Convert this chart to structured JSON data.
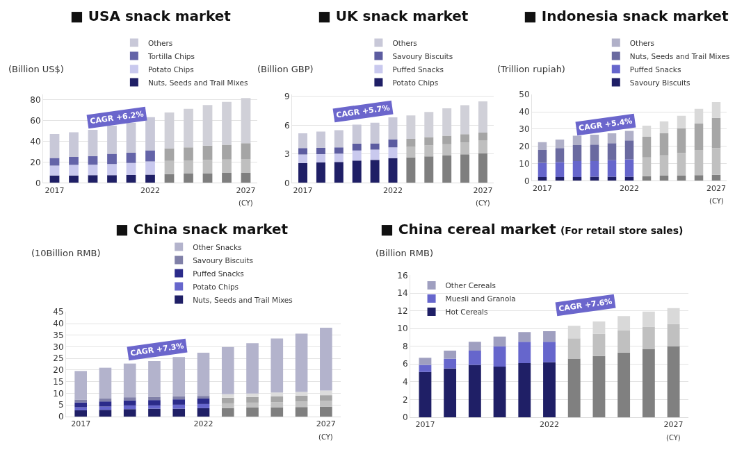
{
  "chart_data": [
    {
      "type": "bar",
      "title": "■ USA snack market",
      "ylabel": "(Billion US$)",
      "xlabel": "(CY)",
      "stacked": true,
      "grid": "y",
      "legend": "top",
      "annotations": [
        "CAGR +6.2%"
      ],
      "categories": [
        "2017",
        null,
        null,
        null,
        null,
        "2022",
        null,
        null,
        null,
        null,
        "2027"
      ],
      "ylim": [
        0,
        85
      ],
      "yticks": [
        0,
        20,
        40,
        60,
        80
      ],
      "series": [
        {
          "name": "Nuts, Seeds and Trail Mixes",
          "colors": [
            "#1f1f66",
            "#1f1f66",
            "#1f1f66",
            "#1f1f66",
            "#1f1f66",
            "#1f1f66",
            "#7f7f7f",
            "#7f7f7f",
            "#7f7f7f",
            "#7f7f7f",
            "#7f7f7f"
          ],
          "values": [
            7.1,
            7.1,
            7.4,
            7.4,
            7.6,
            8.0,
            8.5,
            9.0,
            9.0,
            9.6,
            9.6
          ]
        },
        {
          "name": "Potato Chips",
          "colors": [
            "#c9c9ee",
            "#c9c9ee",
            "#c9c9ee",
            "#c9c9ee",
            "#c9c9ee",
            "#c9c9ee",
            "#bfbfbf",
            "#bfbfbf",
            "#bfbfbf",
            "#bfbfbf",
            "#bfbfbf"
          ],
          "values": [
            9.5,
            10.1,
            10.1,
            10.7,
            11.5,
            12.7,
            12.7,
            12.6,
            13.1,
            12.9,
            13.4
          ]
        },
        {
          "name": "Tortilla Chips",
          "colors": [
            "#6464a8",
            "#6464a8",
            "#6464a8",
            "#6464a8",
            "#6464a8",
            "#6464a8",
            "#a5a5a5",
            "#a5a5a5",
            "#a5a5a5",
            "#a5a5a5",
            "#a5a5a5"
          ],
          "values": [
            7.3,
            7.8,
            8.3,
            9.9,
            9.9,
            10.6,
            11.9,
            12.6,
            13.7,
            14.1,
            15.1
          ]
        },
        {
          "name": "Others",
          "colors": [
            "#c8c8d8",
            "#c8c8d8",
            "#c8c8d8",
            "#c8c8d8",
            "#c8c8d8",
            "#c8c8d8",
            "#d0d0d8",
            "#d0d0d8",
            "#d0d0d8",
            "#d0d0d8",
            "#d0d0d8"
          ],
          "values": [
            23.2,
            23.7,
            25.2,
            27.0,
            28.9,
            31.9,
            34.7,
            37.1,
            39.1,
            41.4,
            43.5
          ]
        }
      ]
    },
    {
      "type": "bar",
      "title": "■ UK snack market",
      "ylabel": "(Billion GBP)",
      "xlabel": "(CY)",
      "stacked": true,
      "grid": "y",
      "legend": "top",
      "annotations": [
        "CAGR +5.7%"
      ],
      "categories": [
        "2017",
        null,
        null,
        null,
        null,
        "2022",
        null,
        null,
        null,
        null,
        "2027"
      ],
      "ylim": [
        0,
        9.2
      ],
      "yticks": [
        0,
        3,
        6,
        9
      ],
      "series": [
        {
          "name": "Potato Chips",
          "colors": [
            "#1f1f66",
            "#1f1f66",
            "#1f1f66",
            "#1f1f66",
            "#1f1f66",
            "#1f1f66",
            "#7f7f7f",
            "#7f7f7f",
            "#7f7f7f",
            "#7f7f7f",
            "#7f7f7f"
          ],
          "values": [
            2.06,
            2.12,
            2.18,
            2.33,
            2.39,
            2.58,
            2.64,
            2.76,
            2.85,
            2.97,
            3.08
          ]
        },
        {
          "name": "Puffed Snacks",
          "colors": [
            "#c9c9ee",
            "#c9c9ee",
            "#c9c9ee",
            "#c9c9ee",
            "#c9c9ee",
            "#c9c9ee",
            "#bfbfbf",
            "#bfbfbf",
            "#bfbfbf",
            "#bfbfbf",
            "#bfbfbf"
          ],
          "values": [
            0.89,
            0.87,
            0.86,
            1.04,
            1.08,
            1.12,
            1.12,
            1.13,
            1.18,
            1.23,
            1.35
          ]
        },
        {
          "name": "Savoury Biscuits",
          "colors": [
            "#5c5ca0",
            "#5c5ca0",
            "#5c5ca0",
            "#5c5ca0",
            "#5c5ca0",
            "#5c5ca0",
            "#a5a5a5",
            "#a5a5a5",
            "#a5a5a5",
            "#a5a5a5",
            "#a5a5a5"
          ],
          "values": [
            0.67,
            0.65,
            0.66,
            0.7,
            0.65,
            0.83,
            0.83,
            0.87,
            0.88,
            0.87,
            0.81
          ]
        },
        {
          "name": "Others",
          "colors": [
            "#c8c8d8",
            "#c8c8d8",
            "#c8c8d8",
            "#c8c8d8",
            "#c8c8d8",
            "#c8c8d8",
            "#d0d0d8",
            "#d0d0d8",
            "#d0d0d8",
            "#d0d0d8",
            "#d0d0d8"
          ],
          "values": [
            1.54,
            1.7,
            1.79,
            2.0,
            2.14,
            2.29,
            2.44,
            2.62,
            2.85,
            3.02,
            3.24
          ]
        }
      ]
    },
    {
      "type": "bar",
      "title": "■ Indonesia snack market",
      "ylabel": "(Trillion rupiah)",
      "xlabel": "(CY)",
      "stacked": true,
      "grid": "y",
      "legend": "top",
      "annotations": [
        "CAGR +5.4%"
      ],
      "categories": [
        "2017",
        null,
        null,
        null,
        null,
        "2022",
        null,
        null,
        null,
        null,
        "2027"
      ],
      "ylim": [
        0,
        50
      ],
      "yticks": [
        0,
        10,
        20,
        30,
        40,
        50
      ],
      "series": [
        {
          "name": "Savoury Biscuits",
          "colors": [
            "#1f1f66",
            "#1f1f66",
            "#1f1f66",
            "#1f1f66",
            "#1f1f66",
            "#1f1f66",
            "#7f7f7f",
            "#7f7f7f",
            "#7f7f7f",
            "#7f7f7f",
            "#7f7f7f"
          ],
          "values": [
            2.2,
            2.2,
            2.2,
            2.4,
            2.4,
            2.4,
            2.7,
            3.0,
            3.0,
            3.3,
            3.5
          ]
        },
        {
          "name": "Puffed Snacks",
          "colors": [
            "#6666cc",
            "#6666cc",
            "#6666cc",
            "#6666cc",
            "#6666cc",
            "#6666cc",
            "#c0c0c0",
            "#c0c0c0",
            "#c0c0c0",
            "#c0c0c0",
            "#c0c0c0"
          ],
          "values": [
            8.2,
            8.6,
            9.2,
            9.0,
            9.5,
            10.0,
            10.9,
            11.8,
            13.2,
            14.4,
            15.5
          ]
        },
        {
          "name": "Nuts, Seeds and Trail Mixes",
          "colors": [
            "#6a6aa0",
            "#6a6aa0",
            "#6a6aa0",
            "#6a6aa0",
            "#6a6aa0",
            "#6a6aa0",
            "#a6a6a6",
            "#a6a6a6",
            "#a6a6a6",
            "#a6a6a6",
            "#a6a6a6"
          ],
          "values": [
            7.5,
            8.2,
            9.3,
            9.6,
            9.9,
            11.0,
            11.9,
            12.7,
            14.2,
            15.5,
            17.5
          ]
        },
        {
          "name": "Others",
          "colors": [
            "#b0b0c8",
            "#b0b0c8",
            "#b0b0c8",
            "#b0b0c8",
            "#b0b0c8",
            "#b0b0c8",
            "#d9d9d9",
            "#d9d9d9",
            "#d9d9d9",
            "#d9d9d9",
            "#d9d9d9"
          ],
          "values": [
            4.5,
            4.9,
            5.4,
            5.7,
            5.7,
            5.5,
            6.5,
            7.0,
            7.3,
            8.5,
            9.1
          ]
        }
      ]
    },
    {
      "type": "bar",
      "title": "■ China snack market",
      "ylabel": "(10Billion RMB)",
      "xlabel": "(CY)",
      "stacked": true,
      "grid": "y",
      "legend": "top",
      "annotations": [
        "CAGR +7.3%"
      ],
      "categories": [
        "2017",
        null,
        null,
        null,
        null,
        "2022",
        null,
        null,
        null,
        null,
        "2027"
      ],
      "ylim": [
        0,
        45
      ],
      "yticks": [
        0,
        5,
        10,
        15,
        20,
        25,
        30,
        35,
        40,
        45
      ],
      "series": [
        {
          "name": "Nuts, Seeds and Trail Mixes",
          "colors": [
            "#1f1f66",
            "#1f1f66",
            "#1f1f66",
            "#1f1f66",
            "#1f1f66",
            "#1f1f66",
            "#7f7f7f",
            "#7f7f7f",
            "#7f7f7f",
            "#7f7f7f",
            "#7f7f7f"
          ],
          "values": [
            2.7,
            2.9,
            3.2,
            3.4,
            3.4,
            3.6,
            3.7,
            4.0,
            4.0,
            4.1,
            4.3
          ]
        },
        {
          "name": "Potato Chips",
          "colors": [
            "#6666cc",
            "#6666cc",
            "#6666cc",
            "#6666cc",
            "#6666cc",
            "#6666cc",
            "#c0c0c0",
            "#c0c0c0",
            "#c0c0c0",
            "#c0c0c0",
            "#c0c0c0"
          ],
          "values": [
            1.3,
            1.4,
            1.6,
            1.4,
            1.7,
            1.8,
            2.0,
            2.0,
            2.2,
            2.4,
            2.5
          ]
        },
        {
          "name": "Puffed Snacks",
          "colors": [
            "#2b2b8a",
            "#2b2b8a",
            "#2b2b8a",
            "#2b2b8a",
            "#2b2b8a",
            "#2b2b8a",
            "#a6a6a6",
            "#a6a6a6",
            "#a6a6a6",
            "#a6a6a6",
            "#a6a6a6"
          ],
          "values": [
            2.1,
            2.2,
            2.2,
            2.3,
            2.3,
            2.4,
            2.4,
            2.4,
            2.5,
            2.5,
            2.4
          ]
        },
        {
          "name": "Savoury Biscuits",
          "colors": [
            "#8080a8",
            "#8080a8",
            "#8080a8",
            "#8080a8",
            "#8080a8",
            "#8080a8",
            "#dcdcdc",
            "#dcdcdc",
            "#dcdcdc",
            "#dcdcdc",
            "#dcdcdc"
          ],
          "values": [
            1.2,
            1.3,
            1.3,
            1.4,
            1.3,
            1.1,
            1.5,
            1.5,
            1.7,
            1.6,
            2.0
          ]
        },
        {
          "name": "Other Snacks",
          "colors": [
            "#b3b3cc",
            "#b3b3cc",
            "#b3b3cc",
            "#b3b3cc",
            "#b3b3cc",
            "#b3b3cc",
            "#b3b3cc",
            "#b3b3cc",
            "#b3b3cc",
            "#b3b3cc",
            "#b3b3cc"
          ],
          "values": [
            12.3,
            13.2,
            14.5,
            15.4,
            16.9,
            18.6,
            20.3,
            21.7,
            23.2,
            25.1,
            27.0
          ]
        }
      ]
    },
    {
      "type": "bar",
      "title": "■ China cereal market",
      "subtitle": "(For retail store sales)",
      "ylabel": "(Billion RMB)",
      "xlabel": "(CY)",
      "stacked": true,
      "grid": "y",
      "legend": "top left",
      "annotations": [
        "CAGR +7.6%"
      ],
      "categories": [
        "2017",
        null,
        null,
        null,
        null,
        "2022",
        null,
        null,
        null,
        null,
        "2027"
      ],
      "ylim": [
        0,
        16
      ],
      "yticks": [
        0,
        2,
        4,
        6,
        8,
        10,
        12,
        14,
        16
      ],
      "series": [
        {
          "name": "Hot Cereals",
          "colors": [
            "#1f1f66",
            "#1f1f66",
            "#1f1f66",
            "#1f1f66",
            "#1f1f66",
            "#1f1f66",
            "#808080",
            "#808080",
            "#808080",
            "#808080",
            "#808080"
          ],
          "values": [
            5.1,
            5.5,
            5.9,
            5.7,
            6.1,
            6.2,
            6.6,
            6.9,
            7.3,
            7.7,
            8.0
          ]
        },
        {
          "name": "Muesli and Granola",
          "colors": [
            "#6666cc",
            "#6666cc",
            "#6666cc",
            "#6666cc",
            "#6666cc",
            "#6666cc",
            "#c0c0c0",
            "#c0c0c0",
            "#c0c0c0",
            "#c0c0c0",
            "#c0c0c0"
          ],
          "values": [
            0.8,
            1.1,
            1.6,
            2.3,
            2.4,
            2.3,
            2.3,
            2.5,
            2.5,
            2.5,
            2.5
          ]
        },
        {
          "name": "Other Cereals",
          "colors": [
            "#9f9fc0",
            "#9f9fc0",
            "#9f9fc0",
            "#9f9fc0",
            "#9f9fc0",
            "#9f9fc0",
            "#d9d9d9",
            "#d9d9d9",
            "#d9d9d9",
            "#d9d9d9",
            "#d9d9d9"
          ],
          "values": [
            0.8,
            0.9,
            1.0,
            1.1,
            1.1,
            1.2,
            1.4,
            1.4,
            1.6,
            1.7,
            1.8
          ]
        }
      ]
    }
  ]
}
